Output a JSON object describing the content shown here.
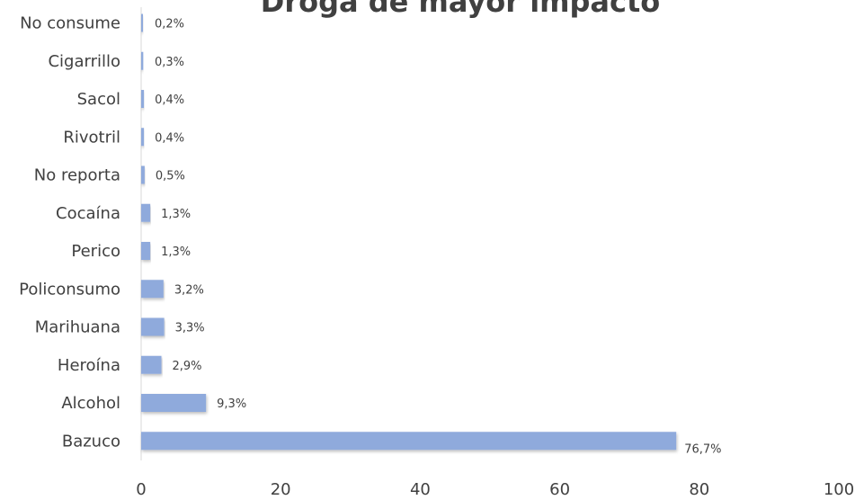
{
  "chart_data": {
    "type": "bar",
    "orientation": "horizontal",
    "title": "Droga de mayor impacto",
    "categories": [
      "No consume",
      "Cigarrillo",
      "Sacol",
      "Rivotril",
      "No reporta",
      "Cocaína",
      "Perico",
      "Policonsumo",
      "Marihuana",
      "Heroína",
      "Alcohol",
      "Bazuco"
    ],
    "values": [
      0.2,
      0.3,
      0.4,
      0.4,
      0.5,
      1.3,
      1.3,
      3.2,
      3.3,
      2.9,
      9.3,
      76.7
    ],
    "data_labels": [
      "0,2%",
      "0,3%",
      "0,4%",
      "0,4%",
      "0,5%",
      "1,3%",
      "1,3%",
      "3,2%",
      "3,3%",
      "2,9%",
      "9,3%",
      "76,7%"
    ],
    "xlim": [
      0,
      100
    ],
    "xticks": [
      0,
      20,
      40,
      60,
      80,
      100
    ],
    "grid": false,
    "legend": "none",
    "bar_color": "#8faadc"
  }
}
